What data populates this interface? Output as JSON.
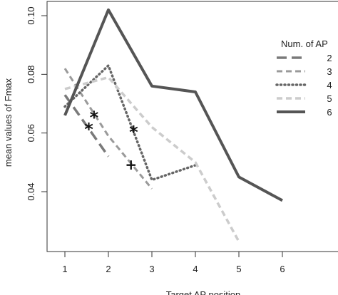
{
  "chart_data": {
    "type": "line",
    "title": "",
    "xlabel": "Target AP position",
    "ylabel": "mean values of Fmax",
    "xlim": [
      0.6,
      6.7
    ],
    "ylim": [
      0.02,
      0.105
    ],
    "x_ticks": [
      1,
      2,
      3,
      4,
      5,
      6
    ],
    "y_ticks": [
      0.04,
      0.06,
      0.08,
      0.1
    ],
    "y_tick_labels": [
      "0.04",
      "0.06",
      "0.08",
      "0.10"
    ],
    "grid": false,
    "legend": {
      "title": "Num. of AP",
      "position": "right"
    },
    "series": [
      {
        "name": "2",
        "color": "#7a7a7a",
        "style": "long-dash",
        "width": 3.5,
        "x": [
          1,
          2
        ],
        "y": [
          0.073,
          0.052
        ]
      },
      {
        "name": "3",
        "color": "#9a9a9a",
        "style": "dash",
        "width": 3,
        "x": [
          1,
          2,
          3
        ],
        "y": [
          0.082,
          0.059,
          0.041
        ]
      },
      {
        "name": "4",
        "color": "#666666",
        "style": "dotted",
        "width": 3.5,
        "x": [
          1,
          2,
          3,
          4
        ],
        "y": [
          0.069,
          0.083,
          0.044,
          0.049
        ]
      },
      {
        "name": "5",
        "color": "#cccccc",
        "style": "dash",
        "width": 3.5,
        "x": [
          1,
          2,
          3,
          4,
          5
        ],
        "y": [
          0.075,
          0.079,
          0.062,
          0.05,
          0.023
        ]
      },
      {
        "name": "6",
        "color": "#555555",
        "style": "solid",
        "width": 4,
        "x": [
          1,
          2,
          3,
          4,
          5,
          6
        ],
        "y": [
          0.066,
          0.102,
          0.076,
          0.074,
          0.045,
          0.037
        ]
      }
    ],
    "markers": [
      {
        "symbol": "*",
        "x": 1.55,
        "y": 0.062
      },
      {
        "symbol": "*",
        "x": 1.67,
        "y": 0.066
      },
      {
        "symbol": "*",
        "x": 2.58,
        "y": 0.061
      },
      {
        "symbol": "+",
        "x": 2.52,
        "y": 0.049
      }
    ]
  }
}
